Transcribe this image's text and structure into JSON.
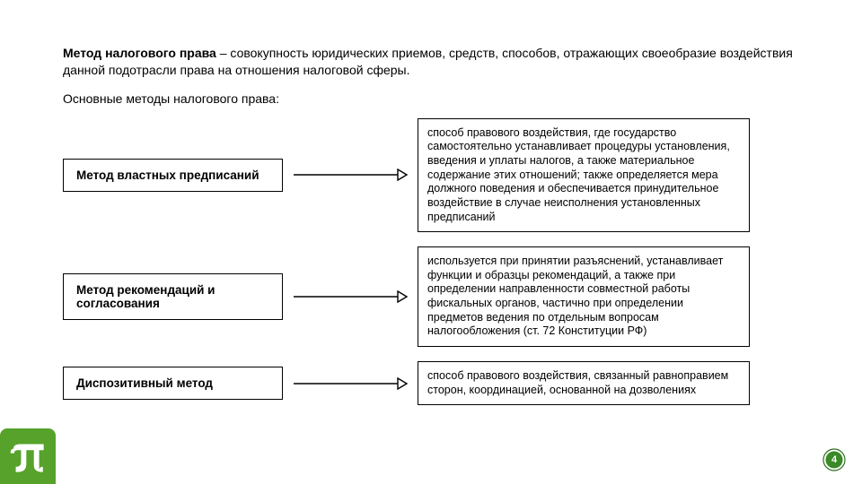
{
  "intro": {
    "term": "Метод налогового права",
    "rest": " – совокупность юридических приемов, средств, способов, отражающих своеобразие воздействия данной подотрасли права на отношения налоговой сферы."
  },
  "subheading": "Основные методы налогового права:",
  "rows": [
    {
      "left": "Метод властных предписаний",
      "right": "способ правового воздействия, где государство самостоятельно устанавливает процедуры установления, введения и уплаты налогов, а также материальное содержание этих отношений; также определяется мера должного поведения и обеспечивается принудительное воздействие в случае неисполнения установленных предписаний"
    },
    {
      "left": "Метод рекомендаций и согласования",
      "right": "используется при принятии разъяснений, устанавливает функции и образцы рекомендаций, а также при определении направленности совместной работы фискальных органов, частично при определении предметов ведения по отдельным вопросам налогообложения (ст. 72 Конституции РФ)"
    },
    {
      "left": "Диспозитивный метод",
      "right": "способ правового воздействия, связанный равноправием сторон, координацией, основанной на дозволениях"
    }
  ],
  "arrow": {
    "stroke": "#000000",
    "stroke_width": 1.4,
    "length": 130,
    "head_w": 10,
    "head_h": 6
  },
  "logo": {
    "bg": "#56a22a",
    "fg": "#ffffff"
  },
  "pagenum": {
    "value": "4",
    "ring_color": "#2f6f1f",
    "inner_color": "#3a8a27"
  }
}
